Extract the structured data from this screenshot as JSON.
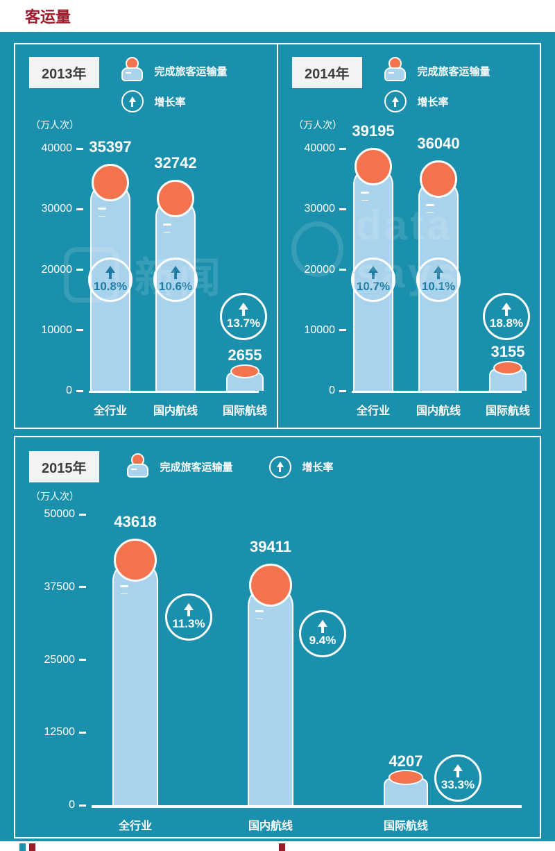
{
  "header": {
    "title": "客运量"
  },
  "watermark": {
    "cn": "新闻",
    "en": "data says"
  },
  "chart_data": [
    {
      "type": "bar",
      "year": "2013年",
      "legend_volume": "完成旅客运输量",
      "legend_rate": "增长率",
      "unit_label": "（万人次）",
      "categories": [
        "全行业",
        "国内航线",
        "国际航线"
      ],
      "values": [
        35397,
        32742,
        2655
      ],
      "growth_percent": [
        "10.8%",
        "10.6%",
        "13.7%"
      ],
      "yticks": [
        40000,
        30000,
        20000,
        10000,
        0
      ],
      "ylim": [
        0,
        40000
      ]
    },
    {
      "type": "bar",
      "year": "2014年",
      "legend_volume": "完成旅客运输量",
      "legend_rate": "增长率",
      "unit_label": "（万人次）",
      "categories": [
        "全行业",
        "国内航线",
        "国际航线"
      ],
      "values": [
        39195,
        36040,
        3155
      ],
      "growth_percent": [
        "10.7%",
        "10.1%",
        "18.8%"
      ],
      "yticks": [
        40000,
        30000,
        20000,
        10000,
        0
      ],
      "ylim": [
        0,
        40000
      ]
    },
    {
      "type": "bar",
      "year": "2015年",
      "legend_volume": "完成旅客运输量",
      "legend_rate": "增长率",
      "unit_label": "（万人次）",
      "categories": [
        "全行业",
        "国内航线",
        "国际航线"
      ],
      "values": [
        43618,
        39411,
        4207
      ],
      "growth_percent": [
        "11.3%",
        "9.4%",
        "33.3%"
      ],
      "yticks": [
        50000,
        37500,
        25000,
        12500,
        0
      ],
      "ylim": [
        0,
        50000
      ]
    }
  ]
}
